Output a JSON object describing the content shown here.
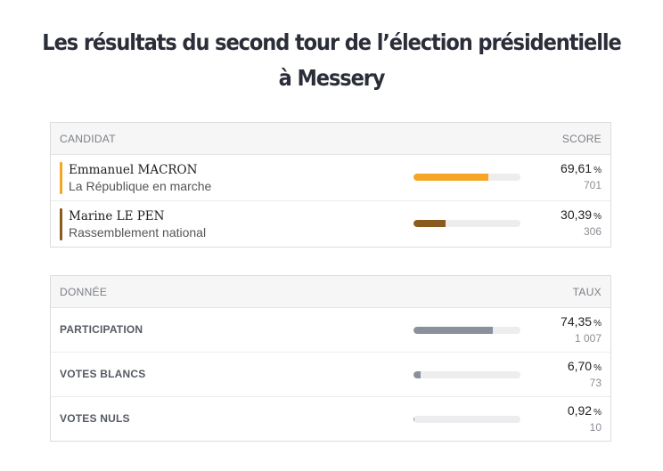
{
  "title": {
    "line1": "Les résultats du second tour de l’élection présidentielle",
    "line2": "à Messery"
  },
  "candidates_table": {
    "header_left": "CANDIDAT",
    "header_right": "SCORE",
    "rows": [
      {
        "name": "Emmanuel MACRON",
        "party": "La République en marche",
        "percent": "69,61",
        "unit": "%",
        "votes": "701",
        "fill_fraction": 0.6961,
        "color": "#f5a623"
      },
      {
        "name": "Marine LE PEN",
        "party": "Rassemblement national",
        "percent": "30,39",
        "unit": "%",
        "votes": "306",
        "fill_fraction": 0.3039,
        "color": "#8b5a1e"
      }
    ]
  },
  "data_table": {
    "header_left": "DONNÉE",
    "header_right": "TAUX",
    "rows": [
      {
        "label": "PARTICIPATION",
        "percent": "74,35",
        "unit": "%",
        "count": "1 007",
        "fill_fraction": 0.7435,
        "color": "#8a909c"
      },
      {
        "label": "VOTES BLANCS",
        "percent": "6,70",
        "unit": "%",
        "count": "73",
        "fill_fraction": 0.067,
        "color": "#8a909c"
      },
      {
        "label": "VOTES NULS",
        "percent": "0,92",
        "unit": "%",
        "count": "10",
        "fill_fraction": 0.0092,
        "color": "#8a909c"
      }
    ]
  }
}
